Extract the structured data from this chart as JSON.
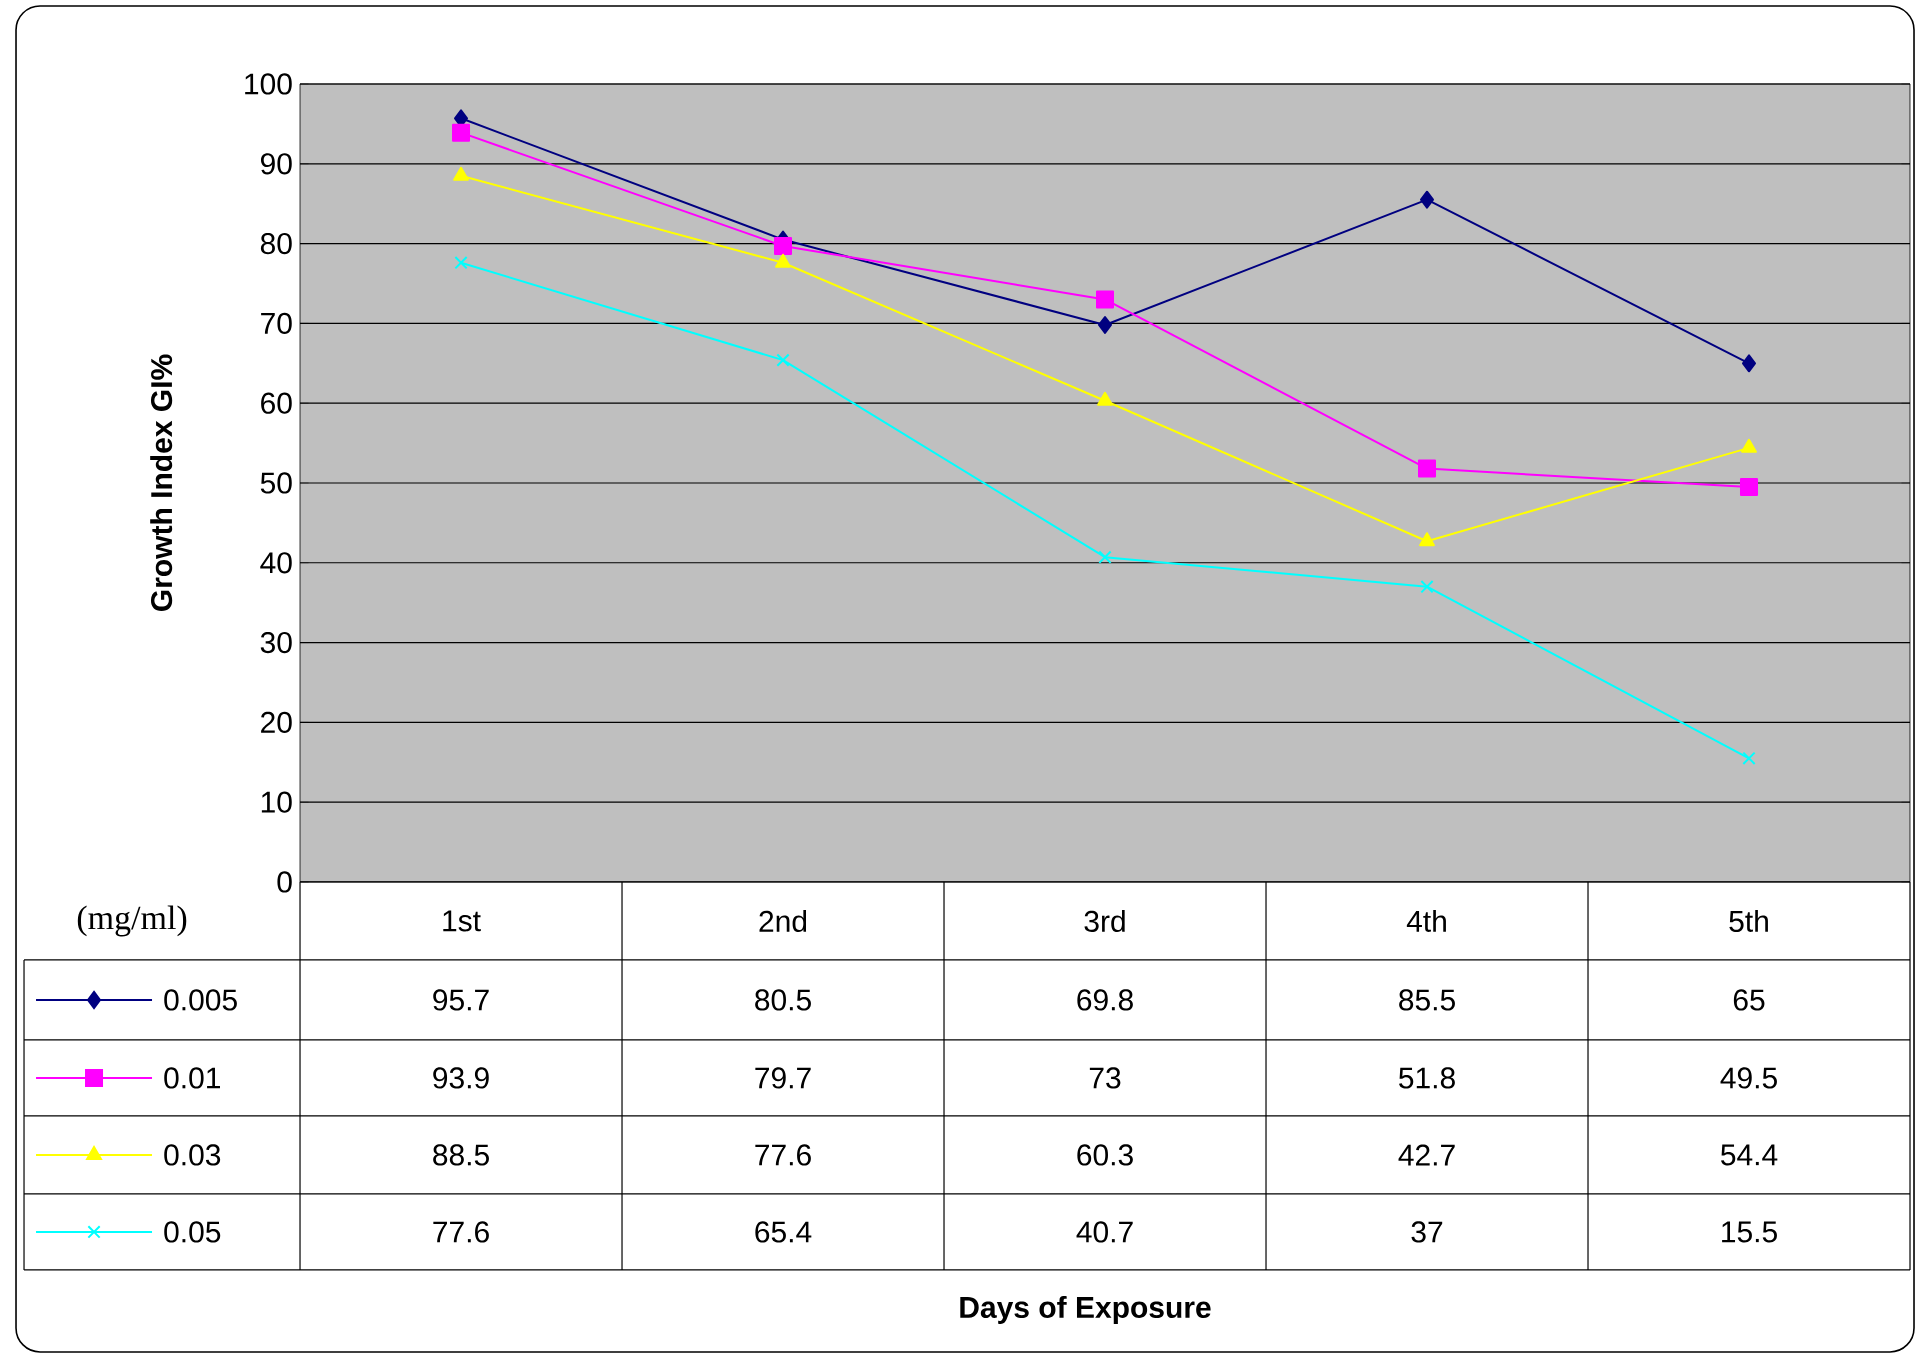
{
  "chart_data": {
    "type": "line",
    "annotations": [
      "Days of Exposure"
    ],
    "ylabel": "Growth Index GI%",
    "legend_title": "(mg/ml)",
    "categories": [
      "1st",
      "2nd",
      "3rd",
      "4th",
      "5th"
    ],
    "series": [
      {
        "name": "0.005",
        "color": "#000080",
        "marker": "diamond",
        "values": [
          95.7,
          80.5,
          69.8,
          85.5,
          65
        ]
      },
      {
        "name": "0.01",
        "color": "#ff00ff",
        "marker": "square",
        "values": [
          93.9,
          79.7,
          73,
          51.8,
          49.5
        ]
      },
      {
        "name": "0.03",
        "color": "#ffff00",
        "marker": "triangle",
        "values": [
          88.5,
          77.6,
          60.3,
          42.7,
          54.4
        ]
      },
      {
        "name": "0.05",
        "color": "#00ffff",
        "marker": "cross",
        "values": [
          77.6,
          65.4,
          40.7,
          37,
          15.5
        ]
      }
    ],
    "ylim": [
      0,
      100
    ],
    "yticks": [
      0,
      10,
      20,
      30,
      40,
      50,
      60,
      70,
      80,
      90,
      100
    ],
    "grid": "y",
    "legend": "bottom",
    "data_labels": true,
    "line_style": "solid"
  }
}
